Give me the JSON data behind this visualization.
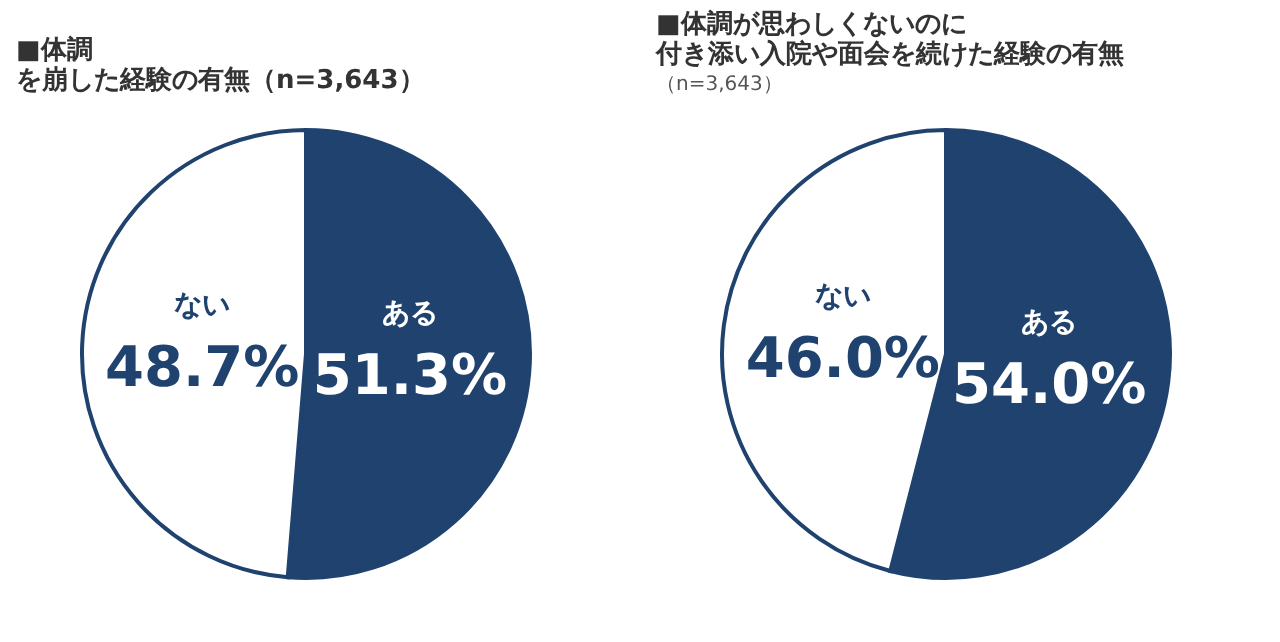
{
  "chart_data": [
    {
      "type": "pie",
      "title": "■体調を崩した経験の有無（n=3,643）",
      "categories": [
        "ある",
        "ない"
      ],
      "values": [
        51.3,
        48.7
      ],
      "value_labels": [
        "51.3%",
        "48.7%"
      ],
      "colors": [
        "#1f426f",
        "#ffffff"
      ]
    },
    {
      "type": "pie",
      "title": "■体調が思わしくないのに付き添い入院や面会を続けた経験の有無",
      "subtitle": "（n=3,643）",
      "categories": [
        "ある",
        "ない"
      ],
      "values": [
        54.0,
        46.0
      ],
      "value_labels": [
        "54.0%",
        "46.0%"
      ],
      "colors": [
        "#1f426f",
        "#ffffff"
      ]
    }
  ]
}
